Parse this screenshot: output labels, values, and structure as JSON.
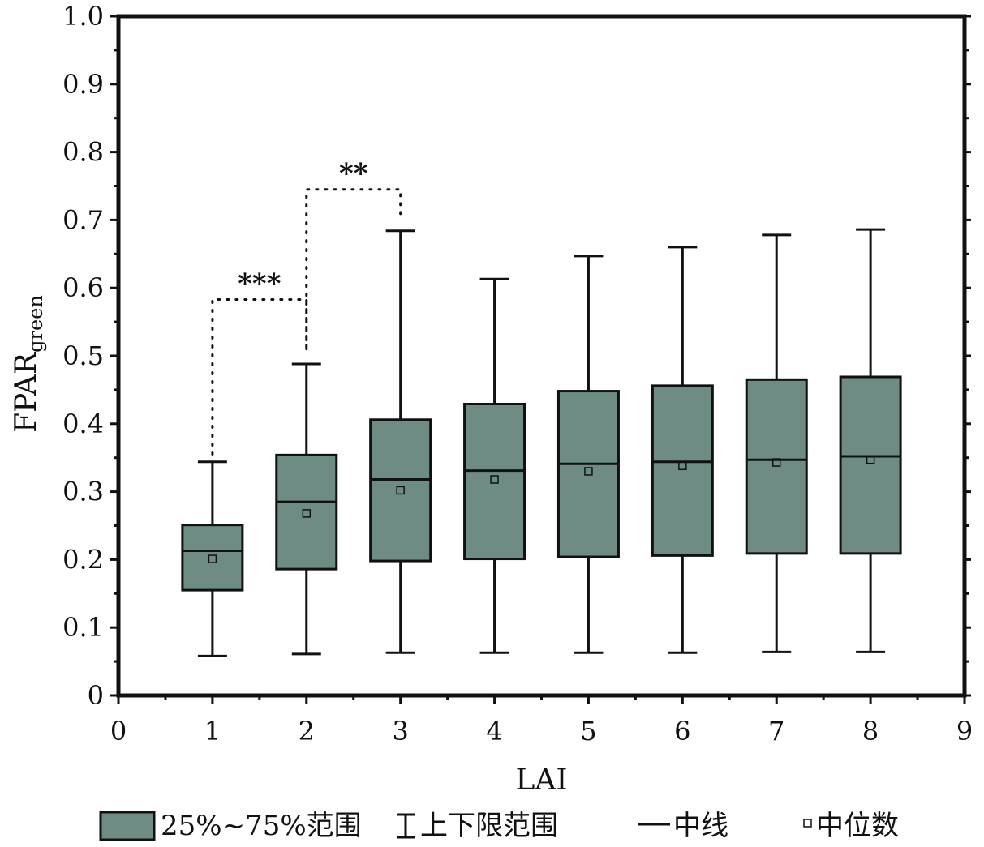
{
  "chart_data": {
    "type": "box",
    "xlabel": "LAI",
    "ylabel": {
      "main": "FPAR",
      "sub": "green"
    },
    "xlim": [
      0,
      9
    ],
    "ylim": [
      0,
      1.0
    ],
    "x_ticks": [
      "0",
      "1",
      "2",
      "3",
      "4",
      "5",
      "6",
      "7",
      "8",
      "9"
    ],
    "y_ticks": [
      "0",
      "0.1",
      "0.2",
      "0.3",
      "0.4",
      "0.5",
      "0.6",
      "0.7",
      "0.8",
      "0.9",
      "1.0"
    ],
    "box_color": "#6e8b84",
    "boxes": [
      {
        "x": 1,
        "min": 0.058,
        "q1": 0.155,
        "median": 0.213,
        "q3": 0.251,
        "max": 0.344,
        "mean": 0.201
      },
      {
        "x": 2,
        "min": 0.061,
        "q1": 0.186,
        "median": 0.285,
        "q3": 0.354,
        "max": 0.488,
        "mean": 0.268
      },
      {
        "x": 3,
        "min": 0.063,
        "q1": 0.198,
        "median": 0.318,
        "q3": 0.406,
        "max": 0.684,
        "mean": 0.302
      },
      {
        "x": 4,
        "min": 0.063,
        "q1": 0.201,
        "median": 0.331,
        "q3": 0.429,
        "max": 0.613,
        "mean": 0.318
      },
      {
        "x": 5,
        "min": 0.063,
        "q1": 0.204,
        "median": 0.341,
        "q3": 0.448,
        "max": 0.647,
        "mean": 0.33
      },
      {
        "x": 6,
        "min": 0.063,
        "q1": 0.206,
        "median": 0.344,
        "q3": 0.456,
        "max": 0.66,
        "mean": 0.338
      },
      {
        "x": 7,
        "min": 0.064,
        "q1": 0.209,
        "median": 0.347,
        "q3": 0.465,
        "max": 0.678,
        "mean": 0.343
      },
      {
        "x": 8,
        "min": 0.064,
        "q1": 0.209,
        "median": 0.352,
        "q3": 0.469,
        "max": 0.686,
        "mean": 0.347
      }
    ],
    "significance": [
      {
        "from": 1,
        "to": 2,
        "y": 0.583,
        "from_y": 0.355,
        "to_y": 0.505,
        "label": "***"
      },
      {
        "from": 2,
        "to": 3,
        "y": 0.745,
        "from_y": 0.51,
        "to_y": 0.7,
        "label": "**"
      }
    ],
    "legend": {
      "box": "25%~75%范围",
      "whisker": "上下限范围",
      "median": "中线",
      "mean": "中位数"
    }
  }
}
